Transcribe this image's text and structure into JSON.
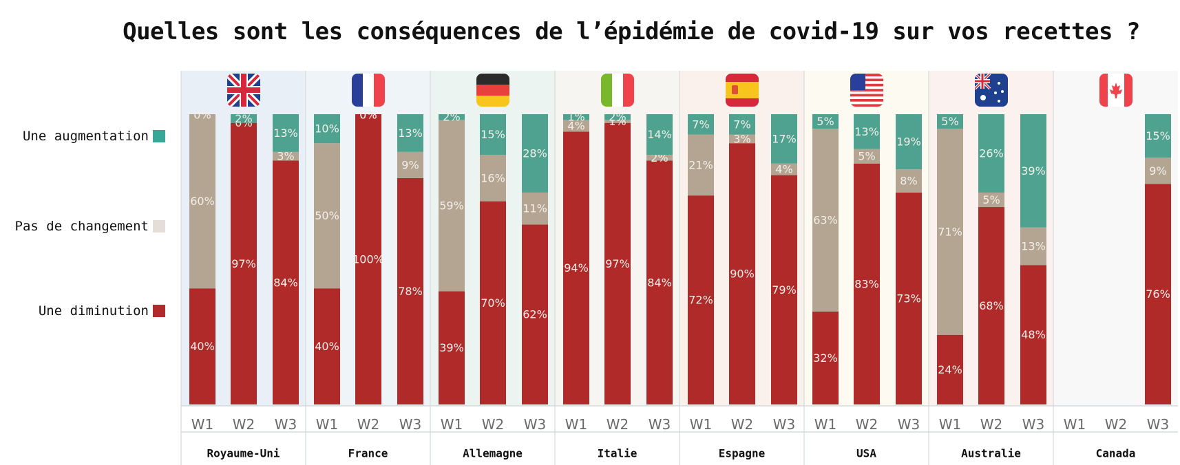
{
  "title": "Quelles sont les conséquences de l’épidémie de covid-19 sur vos recettes ?",
  "colors": {
    "diminution": "#b02a2a",
    "pas_de_changement": "#b3a592",
    "augmentation": "#4fa190",
    "legend_diminution": "#b02a2a",
    "legend_pas_de_changement": "#e5ded8",
    "legend_augmentation": "#35a898"
  },
  "legend": {
    "augmentation": "Une augmentation",
    "pas_de_changement": "Pas de changement",
    "diminution": "Une diminution"
  },
  "chart_data": {
    "type": "bar",
    "stacked": true,
    "orientation": "vertical",
    "ylim": [
      0,
      100
    ],
    "legend_position": "left",
    "series_order": [
      "Une diminution",
      "Pas de changement",
      "Une augmentation"
    ],
    "groups": [
      {
        "country": "Royaume-Uni",
        "flag": "flag-uk-icon",
        "bg": "#e9eff7",
        "weeks": [
          {
            "label": "W1",
            "diminution": 40,
            "pas_de_changement": 60,
            "augmentation": 0
          },
          {
            "label": "W2",
            "diminution": 97,
            "pas_de_changement": 0,
            "augmentation": 2
          },
          {
            "label": "W3",
            "diminution": 84,
            "pas_de_changement": 3,
            "augmentation": 13
          }
        ]
      },
      {
        "country": "France",
        "flag": "flag-france-icon",
        "bg": "#eef4f8",
        "weeks": [
          {
            "label": "W1",
            "diminution": 40,
            "pas_de_changement": 50,
            "augmentation": 10
          },
          {
            "label": "W2",
            "diminution": 100,
            "pas_de_changement": 0,
            "augmentation": 0
          },
          {
            "label": "W3",
            "diminution": 78,
            "pas_de_changement": 9,
            "augmentation": 13
          }
        ]
      },
      {
        "country": "Allemagne",
        "flag": "flag-germany-icon",
        "bg": "#ecf4f1",
        "weeks": [
          {
            "label": "W1",
            "diminution": 39,
            "pas_de_changement": 59,
            "augmentation": 2
          },
          {
            "label": "W2",
            "diminution": 70,
            "pas_de_changement": 16,
            "augmentation": 15
          },
          {
            "label": "W3",
            "diminution": 62,
            "pas_de_changement": 11,
            "augmentation": 28
          }
        ]
      },
      {
        "country": "Italie",
        "flag": "flag-italy-icon",
        "bg": "#f6f5f1",
        "weeks": [
          {
            "label": "W1",
            "diminution": 94,
            "pas_de_changement": 4,
            "augmentation": 1
          },
          {
            "label": "W2",
            "diminution": 97,
            "pas_de_changement": 1,
            "augmentation": 2
          },
          {
            "label": "W3",
            "diminution": 84,
            "pas_de_changement": 2,
            "augmentation": 14
          }
        ]
      },
      {
        "country": "Espagne",
        "flag": "flag-spain-icon",
        "bg": "#fbf1ec",
        "weeks": [
          {
            "label": "W1",
            "diminution": 72,
            "pas_de_changement": 21,
            "augmentation": 7
          },
          {
            "label": "W2",
            "diminution": 90,
            "pas_de_changement": 3,
            "augmentation": 7
          },
          {
            "label": "W3",
            "diminution": 79,
            "pas_de_changement": 4,
            "augmentation": 17
          }
        ]
      },
      {
        "country": "USA",
        "flag": "flag-usa-icon",
        "bg": "#fdfaf1",
        "weeks": [
          {
            "label": "W1",
            "diminution": 32,
            "pas_de_changement": 63,
            "augmentation": 5
          },
          {
            "label": "W2",
            "diminution": 83,
            "pas_de_changement": 5,
            "augmentation": 13
          },
          {
            "label": "W3",
            "diminution": 73,
            "pas_de_changement": 8,
            "augmentation": 19
          }
        ]
      },
      {
        "country": "Australie",
        "flag": "flag-australia-icon",
        "bg": "#fbf1ef",
        "weeks": [
          {
            "label": "W1",
            "diminution": 24,
            "pas_de_changement": 71,
            "augmentation": 5
          },
          {
            "label": "W2",
            "diminution": 68,
            "pas_de_changement": 5,
            "augmentation": 26
          },
          {
            "label": "W3",
            "diminution": 48,
            "pas_de_changement": 13,
            "augmentation": 39
          }
        ]
      },
      {
        "country": "Canada",
        "flag": "flag-canada-icon",
        "bg": "#f8f8f8",
        "weeks": [
          {
            "label": "W1",
            "diminution": null,
            "pas_de_changement": null,
            "augmentation": null
          },
          {
            "label": "W2",
            "diminution": null,
            "pas_de_changement": null,
            "augmentation": null
          },
          {
            "label": "W3",
            "diminution": 76,
            "pas_de_changement": 9,
            "augmentation": 15
          }
        ]
      }
    ]
  }
}
